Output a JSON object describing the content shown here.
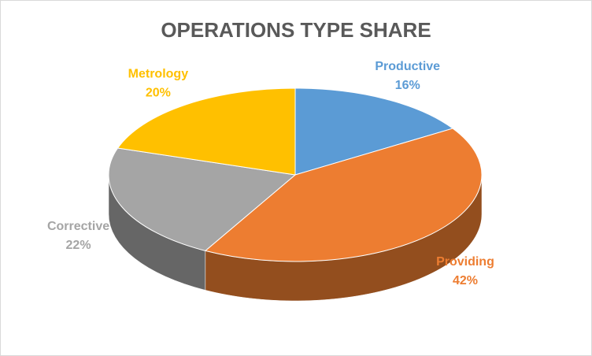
{
  "chart_data": {
    "type": "pie",
    "title": "OPERATIONS TYPE SHARE",
    "categories": [
      "Productive",
      "Providing",
      "Corrective",
      "Metrology"
    ],
    "values": [
      16,
      42,
      22,
      20
    ],
    "value_labels": [
      "16%",
      "42%",
      "22%",
      "20%"
    ],
    "colors": [
      "#5b9bd5",
      "#ed7d31",
      "#a5a5a5",
      "#ffc000"
    ]
  }
}
